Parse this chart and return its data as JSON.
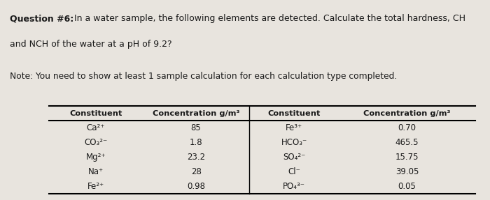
{
  "title_bold": "Question #6:",
  "title_rest_line1": " In a water sample, the following elements are detected. Calculate the total hardness, CH",
  "title_line2": "and NCH of the water at a pH of 9.2?",
  "note_text": "Note: You need to show at least 1 sample calculation for each calculation type completed.",
  "col_headers": [
    "Constituent",
    "Concentration g/m³",
    "Constituent",
    "Concentration g/m³"
  ],
  "left_constituents": [
    "Ca²⁺",
    "CO₃²⁻",
    "Mg²⁺",
    "Na⁺",
    "Fe²⁺"
  ],
  "left_concentrations": [
    "85",
    "1.8",
    "23.2",
    "28",
    "0.98"
  ],
  "right_constituents": [
    "Fe³⁺",
    "HCO₃⁻",
    "SO₄²⁻",
    "Cl⁻",
    "PO₄³⁻"
  ],
  "right_concentrations": [
    "0.70",
    "465.5",
    "15.75",
    "39.05",
    "0.05"
  ],
  "bg_color": "#e8e4de",
  "text_color": "#1a1a1a"
}
